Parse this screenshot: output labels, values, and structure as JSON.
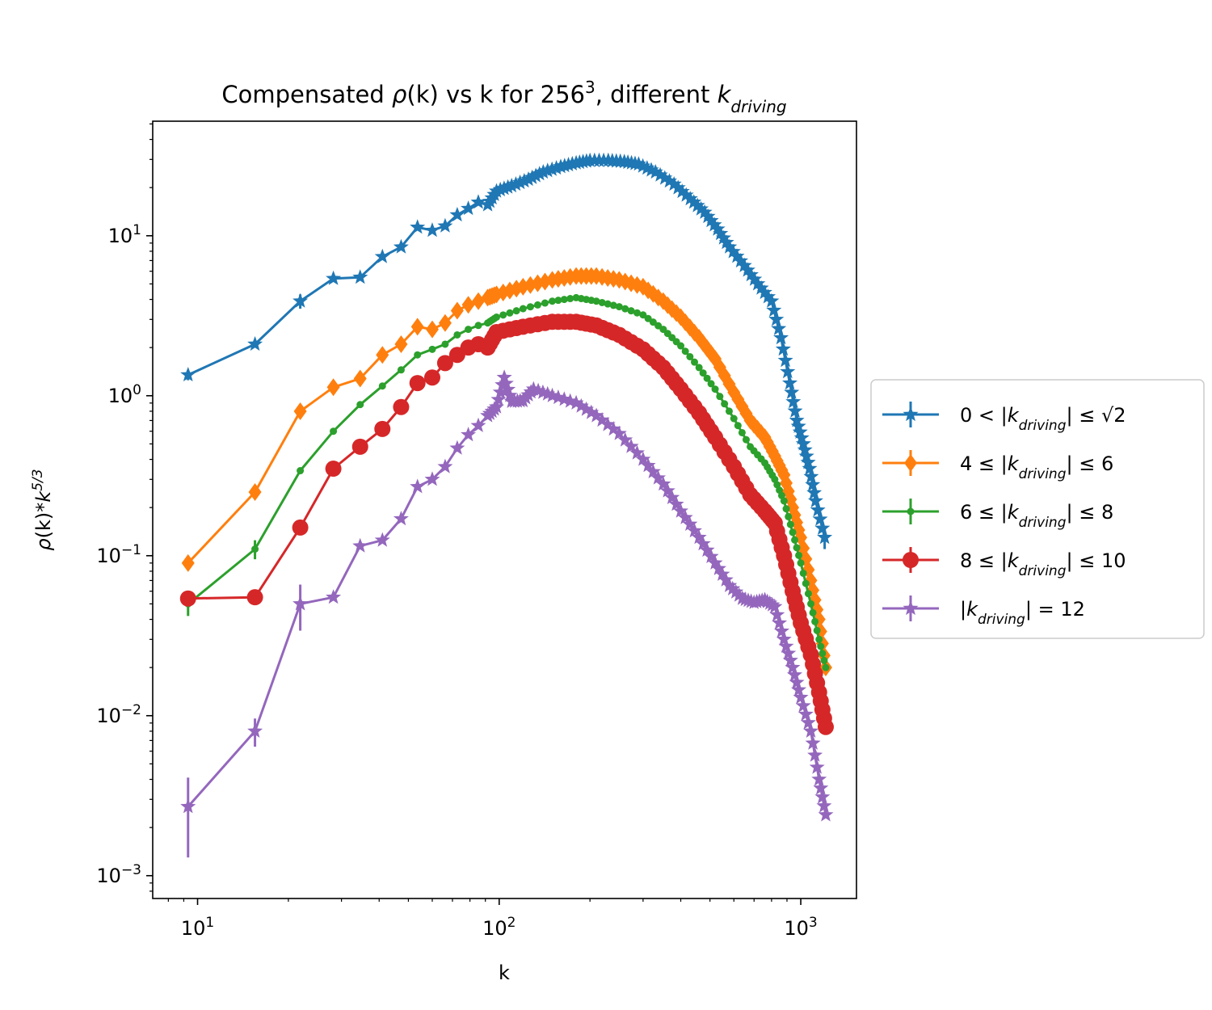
{
  "chart_data": {
    "type": "line",
    "title": "Compensated ρ(k) vs k for 256³, different k_driving",
    "title_parts": {
      "prefix": "Compensated ",
      "rho": "ρ",
      "middle": "(k) vs k for 256",
      "exp": "3",
      "suffix": ", different ",
      "kvar": "k",
      "ksub": "driving"
    },
    "xlabel": "k",
    "ylabel": "ρ(k)*k^5/3",
    "ylabel_parts": {
      "rho": "ρ",
      "mid": "(k)*",
      "k": "k",
      "exp": "5/3"
    },
    "xscale": "log",
    "yscale": "log",
    "xlim": [
      7.1,
      1530
    ],
    "ylim": [
      0.00072,
      52
    ],
    "x_ticks": [
      {
        "value": 10,
        "base": "10",
        "exp": "1"
      },
      {
        "value": 100,
        "base": "10",
        "exp": "2"
      },
      {
        "value": 1000,
        "base": "10",
        "exp": "3"
      }
    ],
    "y_ticks": [
      {
        "value": 0.001,
        "base": "10",
        "exp": "−3"
      },
      {
        "value": 0.01,
        "base": "10",
        "exp": "−2"
      },
      {
        "value": 0.1,
        "base": "10",
        "exp": "−1"
      },
      {
        "value": 1,
        "base": "10",
        "exp": "0"
      },
      {
        "value": 10,
        "base": "10",
        "exp": "1"
      }
    ],
    "grid": false,
    "legend_position": "right-outside",
    "series": [
      {
        "name": "0 < |k_driving| ≤ √2",
        "legend": {
          "pre": "0 < |",
          "k": "k",
          "sub": "driving",
          "post": "| ≤ √2"
        },
        "color": "#1f77b4",
        "marker": "star",
        "points": [
          [
            9.3,
            1.35
          ],
          [
            15.5,
            2.1
          ],
          [
            21.9,
            3.9
          ],
          [
            28.2,
            5.4
          ],
          [
            34.6,
            5.5
          ],
          [
            41,
            7.4
          ],
          [
            47.3,
            8.5
          ],
          [
            53.6,
            11.3
          ],
          [
            60,
            10.8
          ],
          [
            66.2,
            11.5
          ],
          [
            72.6,
            13.5
          ],
          [
            79,
            14.8
          ],
          [
            85.3,
            16.2
          ],
          [
            91.6,
            15.6
          ],
          [
            98,
            19
          ],
          [
            110,
            20.5
          ],
          [
            125,
            22.5
          ],
          [
            140,
            25
          ],
          [
            160,
            27
          ],
          [
            180,
            28.5
          ],
          [
            200,
            29.5
          ],
          [
            230,
            29.5
          ],
          [
            260,
            29
          ],
          [
            290,
            28
          ],
          [
            330,
            25
          ],
          [
            380,
            21
          ],
          [
            430,
            17
          ],
          [
            480,
            14
          ],
          [
            530,
            11
          ],
          [
            580,
            8.5
          ],
          [
            650,
            6.5
          ],
          [
            720,
            5
          ],
          [
            800,
            3.9
          ],
          [
            860,
            2.3
          ],
          [
            920,
            1.2
          ],
          [
            970,
            0.7
          ],
          [
            1020,
            0.5
          ],
          [
            1070,
            0.35
          ],
          [
            1120,
            0.22
          ],
          [
            1200,
            0.13
          ]
        ],
        "error_bars": [
          [
            21.9,
            3.9,
            0.4
          ],
          [
            9.3,
            1.35,
            0.1
          ],
          [
            1200,
            0.13,
            0.02
          ]
        ]
      },
      {
        "name": "4 ≤ |k_driving| ≤ 6",
        "legend": {
          "pre": "4 ≤ |",
          "k": "k",
          "sub": "driving",
          "post": "| ≤ 6"
        },
        "color": "#ff7f0e",
        "marker": "diamond",
        "points": [
          [
            9.3,
            0.09
          ],
          [
            15.5,
            0.25
          ],
          [
            21.9,
            0.8
          ],
          [
            28.2,
            1.13
          ],
          [
            34.6,
            1.28
          ],
          [
            41,
            1.8
          ],
          [
            47.3,
            2.1
          ],
          [
            53.6,
            2.7
          ],
          [
            60,
            2.6
          ],
          [
            66.2,
            2.85
          ],
          [
            72.6,
            3.4
          ],
          [
            79,
            3.7
          ],
          [
            85.3,
            3.9
          ],
          [
            91.6,
            4.1
          ],
          [
            98,
            4.3
          ],
          [
            120,
            4.8
          ],
          [
            150,
            5.3
          ],
          [
            180,
            5.6
          ],
          [
            210,
            5.6
          ],
          [
            250,
            5.3
          ],
          [
            300,
            4.8
          ],
          [
            350,
            3.9
          ],
          [
            400,
            3.1
          ],
          [
            460,
            2.3
          ],
          [
            520,
            1.7
          ],
          [
            600,
            1.05
          ],
          [
            680,
            0.7
          ],
          [
            760,
            0.55
          ],
          [
            820,
            0.42
          ],
          [
            880,
            0.32
          ],
          [
            940,
            0.2
          ],
          [
            1000,
            0.13
          ],
          [
            1080,
            0.07
          ],
          [
            1150,
            0.04
          ],
          [
            1210,
            0.02
          ]
        ],
        "error_bars": [
          [
            9.3,
            0.09,
            0.008
          ],
          [
            15.5,
            0.25,
            0.02
          ]
        ]
      },
      {
        "name": "6 ≤ |k_driving| ≤ 8",
        "legend": {
          "pre": "6 ≤ |",
          "k": "k",
          "sub": "driving",
          "post": "| ≤ 8"
        },
        "color": "#2ca02c",
        "marker": "point",
        "points": [
          [
            9.3,
            0.05
          ],
          [
            15.5,
            0.11
          ],
          [
            21.9,
            0.34
          ],
          [
            28.2,
            0.6
          ],
          [
            34.6,
            0.88
          ],
          [
            41,
            1.15
          ],
          [
            47.3,
            1.45
          ],
          [
            53.6,
            1.8
          ],
          [
            60,
            1.95
          ],
          [
            66.2,
            2.1
          ],
          [
            72.6,
            2.4
          ],
          [
            79,
            2.6
          ],
          [
            85.3,
            2.75
          ],
          [
            91.6,
            2.85
          ],
          [
            98,
            3.1
          ],
          [
            120,
            3.5
          ],
          [
            150,
            3.9
          ],
          [
            180,
            4.1
          ],
          [
            210,
            3.9
          ],
          [
            250,
            3.6
          ],
          [
            300,
            3.2
          ],
          [
            350,
            2.6
          ],
          [
            400,
            2.05
          ],
          [
            460,
            1.5
          ],
          [
            520,
            1.1
          ],
          [
            600,
            0.72
          ],
          [
            680,
            0.48
          ],
          [
            760,
            0.38
          ],
          [
            820,
            0.3
          ],
          [
            880,
            0.22
          ],
          [
            940,
            0.14
          ],
          [
            1000,
            0.09
          ],
          [
            1080,
            0.05
          ],
          [
            1150,
            0.03
          ],
          [
            1210,
            0.02
          ]
        ],
        "error_bars": [
          [
            9.3,
            0.05,
            0.008
          ],
          [
            15.5,
            0.11,
            0.015
          ]
        ]
      },
      {
        "name": "8 ≤ |k_driving| ≤ 10",
        "legend": {
          "pre": "8 ≤ |",
          "k": "k",
          "sub": "driving",
          "post": "| ≤ 10"
        },
        "color": "#d62728",
        "marker": "circle",
        "points": [
          [
            9.3,
            0.054
          ],
          [
            15.5,
            0.055
          ],
          [
            21.9,
            0.15
          ],
          [
            28.2,
            0.35
          ],
          [
            34.6,
            0.48
          ],
          [
            41,
            0.62
          ],
          [
            47.3,
            0.85
          ],
          [
            53.6,
            1.2
          ],
          [
            60,
            1.3
          ],
          [
            66.2,
            1.6
          ],
          [
            72.6,
            1.8
          ],
          [
            79,
            2.0
          ],
          [
            85.3,
            2.1
          ],
          [
            91.6,
            2.0
          ],
          [
            98,
            2.5
          ],
          [
            120,
            2.7
          ],
          [
            150,
            2.9
          ],
          [
            180,
            2.9
          ],
          [
            210,
            2.75
          ],
          [
            250,
            2.4
          ],
          [
            300,
            1.95
          ],
          [
            350,
            1.5
          ],
          [
            400,
            1.1
          ],
          [
            460,
            0.78
          ],
          [
            520,
            0.55
          ],
          [
            600,
            0.36
          ],
          [
            680,
            0.24
          ],
          [
            760,
            0.19
          ],
          [
            820,
            0.16
          ],
          [
            880,
            0.1
          ],
          [
            940,
            0.06
          ],
          [
            1000,
            0.038
          ],
          [
            1080,
            0.024
          ],
          [
            1150,
            0.014
          ],
          [
            1210,
            0.0085
          ]
        ],
        "error_bars": [
          [
            21.9,
            0.15,
            0.015
          ]
        ]
      },
      {
        "name": "|k_driving| = 12",
        "legend": {
          "pre": "|",
          "k": "k",
          "sub": "driving",
          "post": "| = 12"
        },
        "color": "#9467bd",
        "marker": "star",
        "points": [
          [
            9.3,
            0.0027
          ],
          [
            15.5,
            0.008
          ],
          [
            21.9,
            0.05
          ],
          [
            28.2,
            0.055
          ],
          [
            34.6,
            0.115
          ],
          [
            41,
            0.125
          ],
          [
            47.3,
            0.17
          ],
          [
            53.6,
            0.27
          ],
          [
            60,
            0.3
          ],
          [
            66.2,
            0.36
          ],
          [
            72.6,
            0.47
          ],
          [
            79,
            0.57
          ],
          [
            85.3,
            0.65
          ],
          [
            91.6,
            0.75
          ],
          [
            98,
            0.85
          ],
          [
            104,
            1.3
          ],
          [
            110,
            0.92
          ],
          [
            120,
            0.93
          ],
          [
            130,
            1.1
          ],
          [
            150,
            1.0
          ],
          [
            180,
            0.9
          ],
          [
            210,
            0.75
          ],
          [
            250,
            0.58
          ],
          [
            300,
            0.4
          ],
          [
            350,
            0.28
          ],
          [
            400,
            0.19
          ],
          [
            460,
            0.13
          ],
          [
            520,
            0.09
          ],
          [
            580,
            0.065
          ],
          [
            640,
            0.054
          ],
          [
            700,
            0.051
          ],
          [
            760,
            0.053
          ],
          [
            820,
            0.048
          ],
          [
            880,
            0.03
          ],
          [
            940,
            0.02
          ],
          [
            1000,
            0.013
          ],
          [
            1080,
            0.008
          ],
          [
            1150,
            0.004
          ],
          [
            1210,
            0.0024
          ]
        ],
        "error_bars": [
          [
            9.3,
            0.0027,
            0.0014
          ],
          [
            15.5,
            0.008,
            0.0016
          ],
          [
            21.9,
            0.05,
            0.016
          ]
        ]
      }
    ]
  }
}
